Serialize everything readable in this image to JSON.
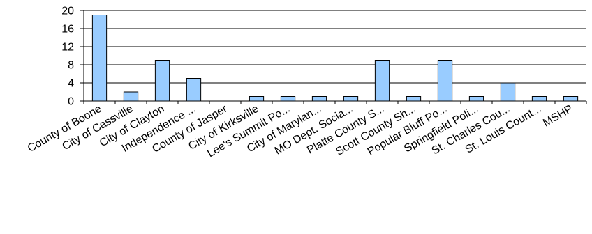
{
  "chart_data": {
    "type": "bar",
    "categories": [
      "County of Boone",
      "City of Cassville",
      "City of Clayton",
      "Independence ...",
      "County of Jasper",
      "City of Kirksville",
      "Lee's Summit Po...",
      "City of Marylan...",
      "MO Dept. Socia...",
      "Platte County S...",
      "Scott County Sh...",
      "Popular Bluff Po...",
      "Springfield Poli...",
      "St. Charles Cou...",
      "St. Louis Count...",
      "MSHP"
    ],
    "values": [
      19,
      2,
      9,
      5,
      0,
      1,
      1,
      1,
      1,
      9,
      1,
      9,
      1,
      4,
      1,
      1
    ],
    "ylim": [
      0,
      20
    ],
    "yticks": [
      0,
      4,
      8,
      12,
      16,
      20
    ],
    "grid": true,
    "colors": {
      "bar_fill": "#99CCFF",
      "bar_stroke": "#000000",
      "grid": "#000000"
    }
  }
}
